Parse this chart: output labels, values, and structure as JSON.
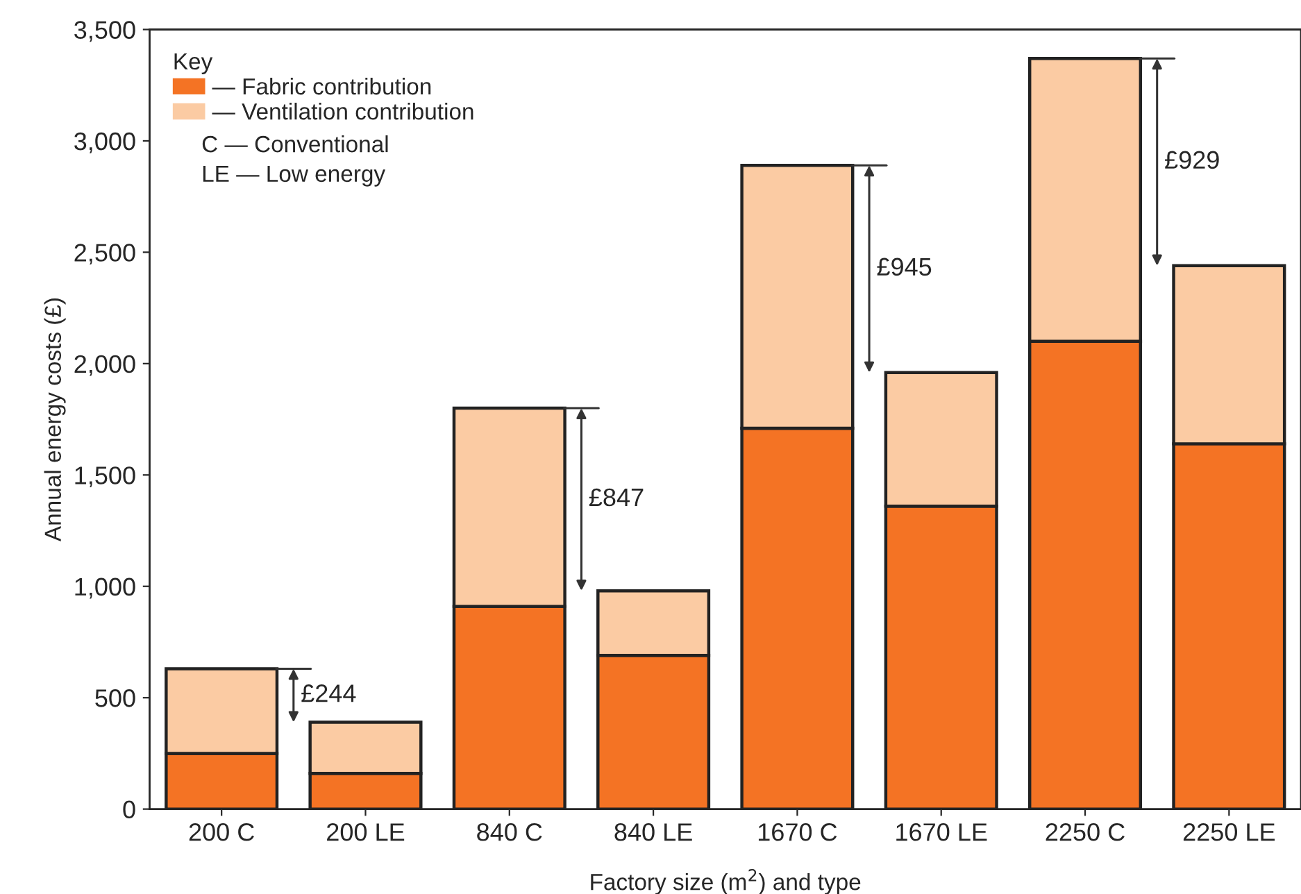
{
  "chart_data": {
    "type": "bar",
    "stacked": true,
    "xlabel": "Factory size (m$^{2}$) and type",
    "ylabel": "Annual energy costs (£)",
    "categories": [
      "200 C",
      "200 LE",
      "840 C",
      "840 LE",
      "1670 C",
      "1670 LE",
      "2250 C",
      "2250 LE"
    ],
    "series": [
      {
        "name": "— Fabric contribution",
        "color": "#f47324",
        "values": [
          250,
          160,
          910,
          690,
          1710,
          1360,
          2100,
          1640
        ]
      },
      {
        "name": "— Ventilation contribution",
        "color": "#fbcba3",
        "values": [
          380,
          230,
          890,
          290,
          1180,
          600,
          1270,
          800
        ]
      }
    ],
    "ylim": [
      0,
      3500
    ],
    "yticks": [
      0,
      500,
      {
        "value": 1000,
        "label": "1,000"
      },
      {
        "value": 1500,
        "label": "1,500"
      },
      {
        "value": 2000,
        "label": "2,000"
      },
      {
        "value": 2500,
        "label": "2,500"
      },
      {
        "value": 3000,
        "label": "3,000"
      },
      {
        "value": 3500,
        "label": "3,500"
      }
    ],
    "legend_title": "Key",
    "legend": "top left",
    "grid": false,
    "annotations": [
      "C — Conventional",
      "LE — Low energy",
      "£244",
      "£847",
      "£945",
      "£929"
    ]
  }
}
